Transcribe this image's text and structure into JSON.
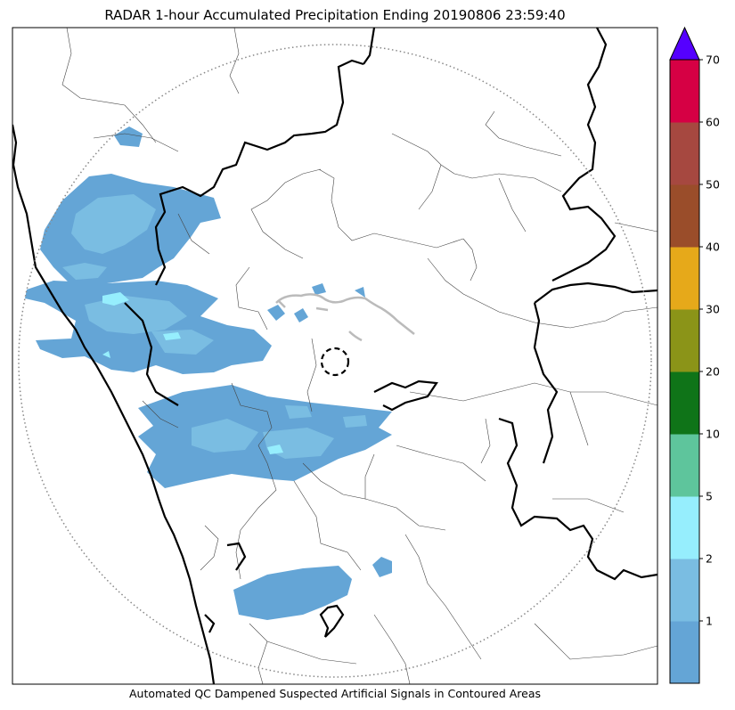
{
  "title": "RADAR 1-hour Accumulated Precipitation Ending 20190806 23:59:40",
  "caption": "Automated QC Dampened Suspected Artificial Signals in Contoured Areas",
  "colorbar": {
    "levels": [
      {
        "value": "1",
        "color": "#64a5d6"
      },
      {
        "value": "2",
        "color": "#7abde2"
      },
      {
        "value": "5",
        "color": "#96eefd"
      },
      {
        "value": "10",
        "color": "#5ec59c"
      },
      {
        "value": "20",
        "color": "#0f7418"
      },
      {
        "value": "30",
        "color": "#8b9418"
      },
      {
        "value": "40",
        "color": "#e6a91a"
      },
      {
        "value": "50",
        "color": "#9a4d2a"
      },
      {
        "value": "60",
        "color": "#a64840"
      },
      {
        "value": "70",
        "color": "#d60044"
      }
    ],
    "extend_color": "#5500ff"
  }
}
